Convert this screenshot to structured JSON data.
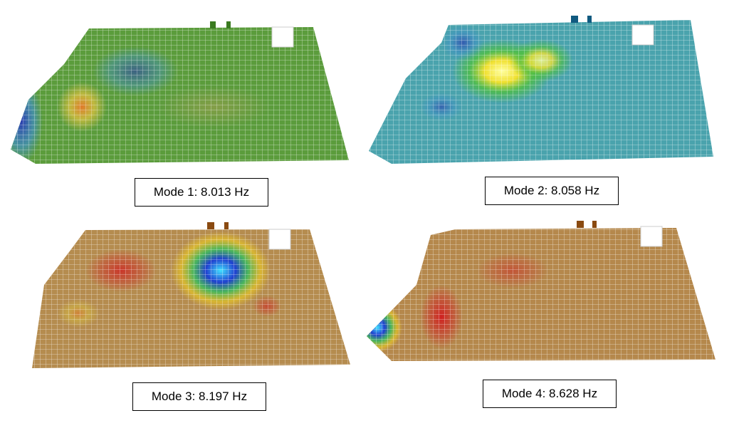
{
  "panels": [
    {
      "caption": "Mode 1: 8.013 Hz"
    },
    {
      "caption": "Mode 2: 8.058 Hz"
    },
    {
      "caption": "Mode 3: 8.197 Hz"
    },
    {
      "caption": "Mode 4: 8.628 Hz"
    }
  ]
}
